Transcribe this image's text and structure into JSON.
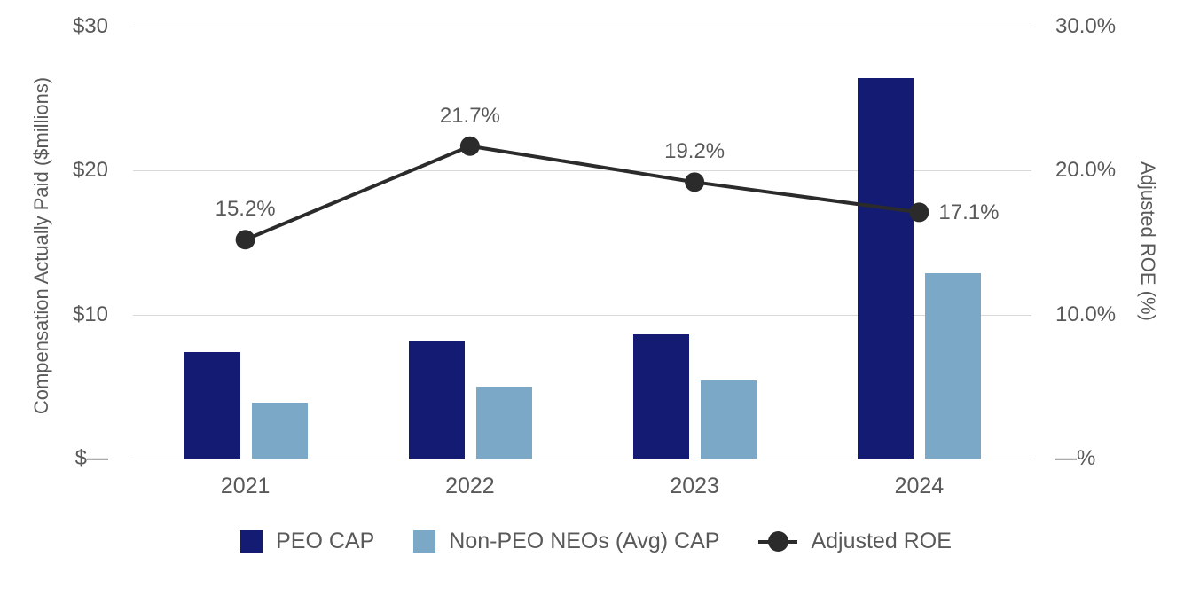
{
  "chart_data": {
    "type": "bar",
    "subtype": "grouped-bar-with-line-combo",
    "categories": [
      "2021",
      "2022",
      "2023",
      "2024"
    ],
    "series": [
      {
        "name": "PEO CAP",
        "kind": "bar",
        "axis": "left",
        "color": "#131b73",
        "values": [
          7.4,
          8.2,
          8.6,
          26.4
        ]
      },
      {
        "name": "Non-PEO NEOs (Avg) CAP",
        "kind": "bar",
        "axis": "left",
        "color": "#7ba8c6",
        "values": [
          3.9,
          5.0,
          5.4,
          12.9
        ]
      },
      {
        "name": "Adjusted ROE",
        "kind": "line",
        "axis": "right",
        "color": "#2b2b2b",
        "values": [
          15.2,
          21.7,
          19.2,
          17.1
        ],
        "point_labels": [
          "15.2%",
          "21.7%",
          "19.2%",
          "17.1%"
        ],
        "label_positions": [
          "above",
          "above",
          "above",
          "right"
        ]
      }
    ],
    "left_axis": {
      "title": "Compensation Actually Paid ($millions)",
      "range": [
        0,
        30
      ],
      "ticks": [
        {
          "label": "$30",
          "value": 30
        },
        {
          "label": "$20",
          "value": 20
        },
        {
          "label": "$10",
          "value": 10
        },
        {
          "label": "$—",
          "value": 0
        }
      ]
    },
    "right_axis": {
      "title": "Adjusted ROE (%)",
      "range": [
        0,
        30
      ],
      "ticks": [
        {
          "label": "30.0%",
          "value": 30
        },
        {
          "label": "20.0%",
          "value": 20
        },
        {
          "label": "10.0%",
          "value": 10
        },
        {
          "label": "—%",
          "value": 0
        }
      ]
    },
    "legend": {
      "position": "bottom",
      "entries": [
        "PEO CAP",
        "Non-PEO NEOs (Avg) CAP",
        "Adjusted ROE"
      ]
    },
    "grid": true
  },
  "colors": {
    "peo_bar": "#131b73",
    "non_peo_bar": "#7ba8c6",
    "roe_line": "#2b2b2b",
    "gridline": "#d9d9d9",
    "text_gray": "#595959",
    "background": "#ffffff"
  }
}
